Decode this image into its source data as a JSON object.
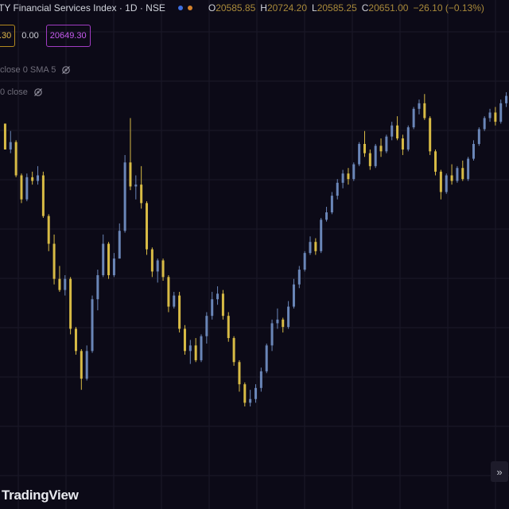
{
  "header": {
    "symbol_title": "TY Financial Services Index · 1D · NSE",
    "ohlc": {
      "o_label": "O",
      "o_value": "20585.85",
      "h_label": "H",
      "h_value": "20724.20",
      "l_label": "L",
      "l_value": "20585.25",
      "c_label": "C",
      "c_value": "20651.00",
      "change": "−26.10 (−0.13%)"
    }
  },
  "price_row": {
    "bid": ".30",
    "spread": "0.00",
    "ask": "20649.30"
  },
  "indicators": [
    {
      "label": "close 0 SMA 5"
    },
    {
      "label": "0 close"
    }
  ],
  "logo_text": "TradingView",
  "colors": {
    "background": "#0c0a17",
    "up_candle": "#6a86b8",
    "down_candle": "#d8bb45",
    "bid_border": "#b2891f",
    "ask_border": "#a13cc4"
  },
  "icons": {
    "eye_icon": "eye-crossed-icon",
    "scroll_icon": "double-chevron-right-icon"
  },
  "chart_data": {
    "type": "candlestick",
    "series": [
      {
        "name": "",
        "values": [
          [
            20290,
            20290,
            20150,
            20150
          ],
          [
            20150,
            20250,
            20130,
            20190
          ],
          [
            20190,
            20200,
            20000,
            20010
          ],
          [
            20010,
            20020,
            19860,
            19880
          ],
          [
            19880,
            20020,
            19870,
            20000
          ],
          [
            20000,
            20030,
            19960,
            19980
          ],
          [
            19980,
            20060,
            19960,
            20010
          ],
          [
            20010,
            20030,
            19780,
            19790
          ],
          [
            19790,
            19800,
            19600,
            19640
          ],
          [
            19640,
            19690,
            19420,
            19450
          ],
          [
            19450,
            19520,
            19380,
            19390
          ],
          [
            19390,
            19470,
            19360,
            19450
          ],
          [
            19450,
            19460,
            19150,
            19180
          ],
          [
            19180,
            19190,
            19040,
            19060
          ],
          [
            19060,
            19070,
            18850,
            18910
          ],
          [
            18910,
            19090,
            18900,
            19060
          ],
          [
            19060,
            19360,
            19050,
            19340
          ],
          [
            19340,
            19500,
            19280,
            19470
          ],
          [
            19470,
            19690,
            19460,
            19640
          ],
          [
            19640,
            19650,
            19450,
            19470
          ],
          [
            19470,
            19590,
            19460,
            19560
          ],
          [
            19560,
            19750,
            19560,
            19710
          ],
          [
            19710,
            20120,
            19700,
            20080
          ],
          [
            20080,
            20320,
            19930,
            19950
          ],
          [
            19950,
            20010,
            19880,
            19960
          ],
          [
            19960,
            20060,
            19830,
            19860
          ],
          [
            19860,
            19870,
            19580,
            19610
          ],
          [
            19610,
            19620,
            19460,
            19490
          ],
          [
            19490,
            19560,
            19430,
            19550
          ],
          [
            19550,
            19560,
            19440,
            19460
          ],
          [
            19460,
            19470,
            19270,
            19300
          ],
          [
            19300,
            19380,
            19290,
            19360
          ],
          [
            19360,
            19380,
            19160,
            19180
          ],
          [
            19180,
            19200,
            19040,
            19060
          ],
          [
            19060,
            19120,
            18990,
            19090
          ],
          [
            19090,
            19130,
            19000,
            19010
          ],
          [
            19010,
            19150,
            19000,
            19140
          ],
          [
            19140,
            19270,
            19100,
            19250
          ],
          [
            19250,
            19380,
            19230,
            19340
          ],
          [
            19340,
            19410,
            19310,
            19370
          ],
          [
            19370,
            19390,
            19230,
            19250
          ],
          [
            19250,
            19270,
            19110,
            19130
          ],
          [
            19130,
            19140,
            18980,
            19000
          ],
          [
            19000,
            19010,
            18840,
            18880
          ],
          [
            18880,
            18890,
            18760,
            18780
          ],
          [
            18780,
            18850,
            18760,
            18800
          ],
          [
            18800,
            18880,
            18780,
            18860
          ],
          [
            18860,
            18970,
            18840,
            18950
          ],
          [
            18950,
            19100,
            18940,
            19090
          ],
          [
            19090,
            19230,
            19060,
            19210
          ],
          [
            19210,
            19290,
            19180,
            19230
          ],
          [
            19230,
            19240,
            19160,
            19190
          ],
          [
            19190,
            19330,
            19180,
            19300
          ],
          [
            19300,
            19450,
            19290,
            19420
          ],
          [
            19420,
            19520,
            19400,
            19500
          ],
          [
            19500,
            19600,
            19490,
            19590
          ],
          [
            19590,
            19680,
            19580,
            19650
          ],
          [
            19650,
            19670,
            19580,
            19600
          ],
          [
            19600,
            19780,
            19590,
            19770
          ],
          [
            19770,
            19840,
            19760,
            19810
          ],
          [
            19810,
            19920,
            19800,
            19900
          ],
          [
            19900,
            19990,
            19880,
            19970
          ],
          [
            19970,
            20040,
            19940,
            20020
          ],
          [
            20020,
            20050,
            19960,
            19990
          ],
          [
            19990,
            20080,
            19980,
            20070
          ],
          [
            20070,
            20190,
            20060,
            20180
          ],
          [
            20180,
            20250,
            20110,
            20130
          ],
          [
            20130,
            20150,
            20040,
            20060
          ],
          [
            20060,
            20180,
            20050,
            20170
          ],
          [
            20170,
            20210,
            20110,
            20140
          ],
          [
            20140,
            20230,
            20130,
            20220
          ],
          [
            20220,
            20300,
            20200,
            20280
          ],
          [
            20280,
            20330,
            20200,
            20210
          ],
          [
            20210,
            20230,
            20120,
            20150
          ],
          [
            20150,
            20280,
            20140,
            20270
          ],
          [
            20270,
            20380,
            20260,
            20370
          ],
          [
            20370,
            20420,
            20340,
            20400
          ],
          [
            20400,
            20450,
            20310,
            20320
          ],
          [
            20320,
            20330,
            20120,
            20140
          ],
          [
            20140,
            20150,
            20010,
            20030
          ],
          [
            20030,
            20040,
            19880,
            19920
          ],
          [
            19920,
            20020,
            19910,
            20010
          ],
          [
            20010,
            20070,
            19960,
            19980
          ],
          [
            19980,
            20060,
            19970,
            20050
          ],
          [
            20050,
            20090,
            19980,
            19990
          ],
          [
            19990,
            20110,
            19980,
            20100
          ],
          [
            20100,
            20200,
            20090,
            20180
          ],
          [
            20180,
            20270,
            20170,
            20260
          ],
          [
            20260,
            20330,
            20250,
            20320
          ],
          [
            20320,
            20370,
            20300,
            20350
          ],
          [
            20350,
            20380,
            20280,
            20300
          ],
          [
            20300,
            20420,
            20290,
            20400
          ],
          [
            20400,
            20460,
            20380,
            20440
          ]
        ]
      }
    ],
    "bar_interval": "1D",
    "ohlc_order": [
      "open",
      "high",
      "low",
      "close"
    ],
    "y_range": [
      18700,
      20550
    ],
    "grid": true
  }
}
